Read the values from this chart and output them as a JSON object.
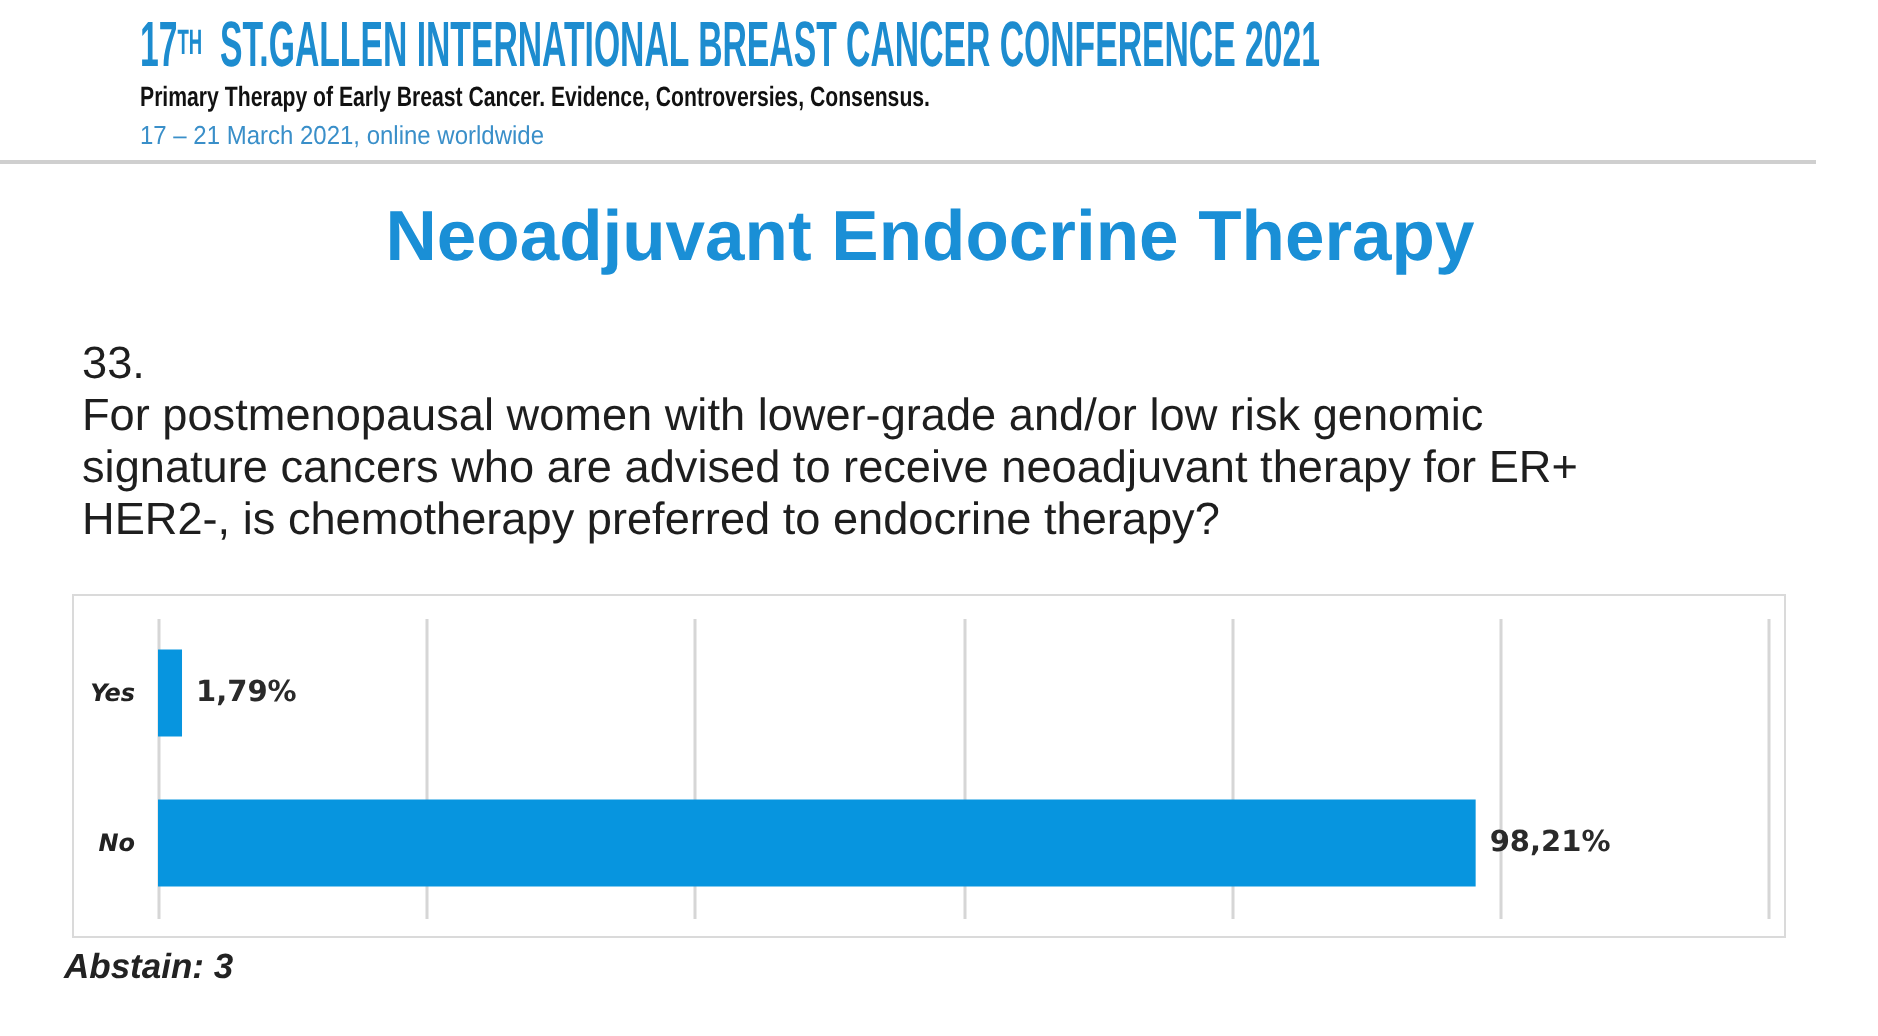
{
  "chart_data": {
    "type": "bar",
    "orientation": "horizontal",
    "title": "Neoadjuvant Endocrine Therapy",
    "subtitle": "33.\nFor postmenopausal women with lower-grade and/or low risk genomic signature cancers who are advised to receive neoadjuvant therapy for ER+ HER2-, is chemotherapy preferred to endocrine therapy?",
    "annotations": [
      "17$^{TH}$ ST.GALLEN INTERNATIONAL BREAST CANCER CONFERENCE 2021",
      "Primary Therapy of Early Breast Cancer. Evidence, Controversies, Consensus.",
      "17 – 21 March 2021, online worldwide",
      "Abstain: 3"
    ],
    "categories": [
      "Yes",
      "No"
    ],
    "values": [
      1.79,
      98.21
    ],
    "value_labels": [
      "1,79%",
      "98,21%"
    ],
    "color": "#0795df",
    "xlim": [
      0,
      120
    ],
    "xticks": [
      {
        "value": 0,
        "label": null
      },
      {
        "value": 20,
        "label": null
      },
      {
        "value": 40,
        "label": null
      },
      {
        "value": 60,
        "label": null
      },
      {
        "value": 80,
        "label": null
      },
      {
        "value": 100,
        "label": null
      },
      {
        "value": 120,
        "label": null
      }
    ],
    "grid": "x",
    "tick_labels": "y"
  }
}
